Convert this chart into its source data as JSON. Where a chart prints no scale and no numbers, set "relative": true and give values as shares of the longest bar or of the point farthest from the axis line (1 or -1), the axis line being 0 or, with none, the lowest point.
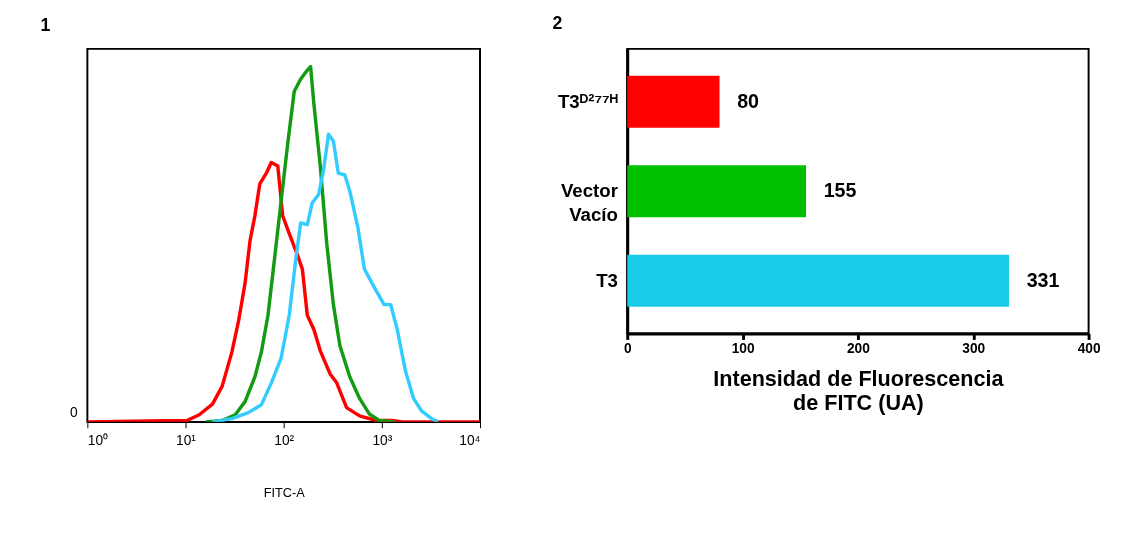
{
  "chart_data": [
    {
      "type": "line",
      "title": "1",
      "xlabel": "FITC-A",
      "relative": true,
      "log": "x",
      "xlim": [
        1,
        10000
      ],
      "xticks": [
        {
          "value": 1,
          "label": "10⁰"
        },
        {
          "value": 10,
          "label": "10¹"
        },
        {
          "value": 100,
          "label": "10²"
        },
        {
          "value": 1000,
          "label": "10³"
        },
        {
          "value": 10000,
          "label": "10⁴"
        }
      ],
      "annotations": [
        "0"
      ],
      "grid": false,
      "legend": false,
      "marker": "none",
      "line_style": "solid",
      "series": [
        {
          "color": "#ff0000",
          "x": [
            1,
            5.9,
            10.2,
            13.8,
            18.8,
            23.6,
            29.7,
            34.7,
            40.4,
            45.4,
            50.9,
            57.1,
            66.6,
            74.7,
            87.1,
            97.7,
            114,
            138,
            155,
            174,
            203,
            236,
            297,
            347,
            437,
            593,
            871,
            1279,
            1610,
            10000
          ],
          "values": [
            0,
            0.003,
            0.003,
            0.02,
            0.05,
            0.1,
            0.197,
            0.284,
            0.39,
            0.51,
            0.58,
            0.67,
            0.7,
            0.73,
            0.72,
            0.58,
            0.53,
            0.47,
            0.43,
            0.3,
            0.26,
            0.2,
            0.135,
            0.11,
            0.04,
            0.017,
            0.004,
            0.004,
            0,
            0
          ]
        },
        {
          "color": "#129a12",
          "x": [
            16.1,
            23.6,
            32.1,
            40.4,
            50.9,
            59.3,
            69.2,
            80.7,
            94.0,
            109.6,
            128,
            149,
            174,
            188,
            203,
            236,
            275,
            321,
            374,
            471,
            593,
            747,
            940,
            1380
          ],
          "values": [
            0,
            0.004,
            0.02,
            0.057,
            0.127,
            0.197,
            0.3,
            0.46,
            0.62,
            0.78,
            0.93,
            0.965,
            0.99,
            1,
            0.895,
            0.72,
            0.5,
            0.33,
            0.214,
            0.127,
            0.066,
            0.022,
            0.004,
            0
          ]
        },
        {
          "color": "#33ccff",
          "x": [
            18.8,
            29.7,
            43.6,
            59.3,
            74.7,
            94.0,
            114,
            133,
            149,
            174,
            195,
            227,
            255,
            286,
            321,
            360,
            420,
            471,
            571,
            665,
            871,
            1055,
            1230,
            1435,
            1738,
            2105,
            2552,
            3213,
            3743
          ],
          "values": [
            0,
            0.009,
            0.026,
            0.048,
            0.109,
            0.179,
            0.3,
            0.46,
            0.56,
            0.555,
            0.616,
            0.64,
            0.71,
            0.81,
            0.79,
            0.7,
            0.695,
            0.65,
            0.546,
            0.43,
            0.37,
            0.33,
            0.33,
            0.26,
            0.144,
            0.066,
            0.03,
            0.009,
            0
          ]
        }
      ]
    },
    {
      "type": "bar",
      "title": "2",
      "orientation": "horizontal",
      "xlabel": "Intensidad de Fluorescencia\nde FITC (UA)",
      "categories": [
        "T3ᴰ²⁷⁷ᴴ",
        "Vector Vacío",
        "T3"
      ],
      "values": [
        80,
        155,
        331
      ],
      "colors": [
        "#ff0000",
        "#00c000",
        "#18cce8"
      ],
      "xlim": [
        0,
        400
      ],
      "xticks": [
        0,
        100,
        200,
        300,
        400
      ],
      "data_labels": true,
      "grid": false
    }
  ]
}
